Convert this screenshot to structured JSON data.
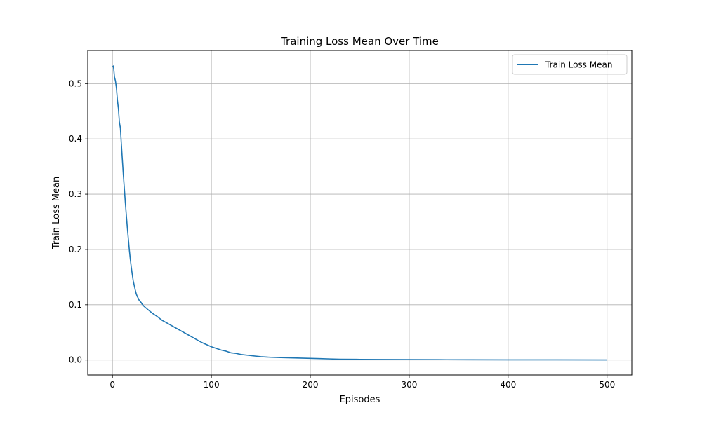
{
  "chart_data": {
    "type": "line",
    "title": "Training Loss Mean Over Time",
    "xlabel": "Episodes",
    "ylabel": "Train Loss Mean",
    "xlim": [
      -25,
      525
    ],
    "ylim": [
      -0.027,
      0.56
    ],
    "xticks": [
      0,
      100,
      200,
      300,
      400,
      500
    ],
    "yticks": [
      0.0,
      0.1,
      0.2,
      0.3,
      0.4,
      0.5
    ],
    "xtick_labels": [
      "0",
      "100",
      "200",
      "300",
      "400",
      "500"
    ],
    "ytick_labels": [
      "0.0",
      "0.1",
      "0.2",
      "0.3",
      "0.4",
      "0.5"
    ],
    "grid": true,
    "legend_position": "top-right",
    "series": [
      {
        "name": "Train Loss Mean",
        "color": "#1f77b4",
        "x": [
          0,
          1,
          2,
          3,
          4,
          5,
          6,
          7,
          8,
          9,
          10,
          11,
          12,
          13,
          14,
          15,
          16,
          17,
          18,
          19,
          20,
          21,
          22,
          23,
          24,
          25,
          26,
          27,
          28,
          29,
          30,
          32,
          34,
          36,
          38,
          40,
          45,
          50,
          55,
          60,
          65,
          70,
          75,
          80,
          85,
          90,
          95,
          100,
          105,
          110,
          115,
          120,
          125,
          130,
          140,
          150,
          160,
          170,
          180,
          190,
          200,
          210,
          220,
          230,
          250,
          270,
          300,
          330,
          360,
          400,
          450,
          500
        ],
        "y": [
          0.53,
          0.532,
          0.512,
          0.505,
          0.492,
          0.47,
          0.455,
          0.43,
          0.42,
          0.39,
          0.362,
          0.335,
          0.31,
          0.285,
          0.262,
          0.24,
          0.22,
          0.2,
          0.183,
          0.168,
          0.155,
          0.143,
          0.135,
          0.127,
          0.12,
          0.115,
          0.112,
          0.108,
          0.106,
          0.104,
          0.101,
          0.097,
          0.094,
          0.091,
          0.088,
          0.085,
          0.079,
          0.072,
          0.067,
          0.062,
          0.057,
          0.052,
          0.047,
          0.042,
          0.037,
          0.032,
          0.028,
          0.024,
          0.021,
          0.018,
          0.016,
          0.013,
          0.012,
          0.01,
          0.008,
          0.006,
          0.005,
          0.0045,
          0.004,
          0.0035,
          0.003,
          0.0025,
          0.002,
          0.0015,
          0.0012,
          0.001,
          0.0008,
          0.0006,
          0.0005,
          0.0004,
          0.0003,
          0.0002
        ]
      }
    ]
  }
}
